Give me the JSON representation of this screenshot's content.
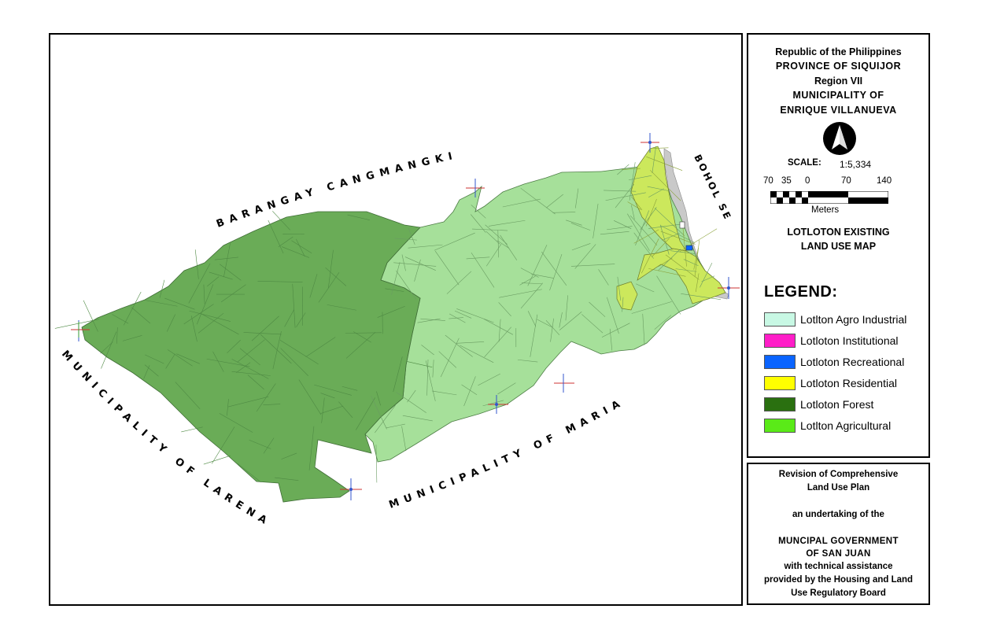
{
  "map": {
    "labels": {
      "north": "BARANGAY CANGMANGKI",
      "east": "BOHOL SEA",
      "west": "MUNICIPALITY OF LARENA",
      "south": "MUNICIPALITY OF MARIA"
    },
    "zone_colors": {
      "forest": "#6aac57",
      "agricultural": "#a6e09a",
      "residential": "#cce85c",
      "sea_shore": "#c9c9c9"
    }
  },
  "title_block": {
    "lines": [
      "Republic of the Philippines",
      "PROVINCE OF SIQUIJOR",
      "Region VII",
      "MUNICIPALITY OF",
      "ENRIQUE VILLANUEVA"
    ],
    "north_arrow_icon": "north-arrow-icon",
    "scale_label": "SCALE:",
    "scale_value": "1:5,334",
    "scale_ticks": [
      "70",
      "35",
      "0",
      "70",
      "140"
    ],
    "scale_unit": "Meters",
    "map_title": [
      "LOTLOTON EXISTING",
      "LAND USE MAP"
    ]
  },
  "legend": {
    "title": "LEGEND:",
    "items": [
      {
        "label": "Lotlton Agro Industrial",
        "color": "#c8f8e4"
      },
      {
        "label": "Lotloton Institutional",
        "color": "#ff1ec8"
      },
      {
        "label": "Lotloton Recreational",
        "color": "#0a64ff"
      },
      {
        "label": "Lotloton Residential",
        "color": "#ffff00"
      },
      {
        "label": "Lotloton Forest",
        "color": "#2a7010"
      },
      {
        "label": "Lotlton Agricultural",
        "color": "#5aea18"
      }
    ]
  },
  "credits": {
    "lines": [
      "Revision of Comprehensive",
      "Land Use Plan",
      "",
      "an undertaking of the",
      "",
      "MUNCIPAL GOVERNMENT",
      "OF SAN JUAN",
      "with technical assistance",
      "provided by the Housing and Land",
      "Use Regulatory Board"
    ]
  }
}
